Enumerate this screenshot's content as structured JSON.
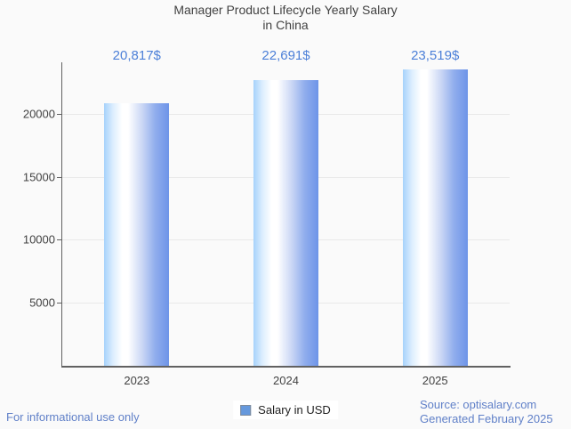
{
  "title": {
    "line1": "Manager Product Lifecycle Yearly Salary",
    "line2": "in China"
  },
  "legend": {
    "label": "Salary in USD",
    "swatch_color": "#6699dd"
  },
  "footer": {
    "left": "For informational use only",
    "source": "Source: optisalary.com",
    "generated": "Generated February 2025"
  },
  "colors": {
    "background": "#fafafa",
    "axis": "#616161",
    "gridline": "#e9e9e9",
    "text_dark": "#424242",
    "value_label_blue": "#4d80d8",
    "footer_blue": "#6080c8",
    "bar_edge_blue": "#6d94e8",
    "bar_light_blue": "#a6d2fb"
  },
  "chart_data": {
    "type": "bar",
    "title": "Manager Product Lifecycle Yearly Salary in China",
    "categories": [
      "2023",
      "2024",
      "2025"
    ],
    "series": [
      {
        "name": "Salary in USD",
        "values": [
          20817,
          22691,
          23519
        ]
      }
    ],
    "value_labels": [
      "20,817$",
      "22,691$",
      "23,519$"
    ],
    "xlabel": "",
    "ylabel": "",
    "yticks": [
      5000,
      10000,
      15000,
      20000
    ],
    "ylim": [
      0,
      24085
    ],
    "grid": true,
    "legend_position": "bottom",
    "bar_fill": "horizontal gradient light-blue / white / blue"
  }
}
